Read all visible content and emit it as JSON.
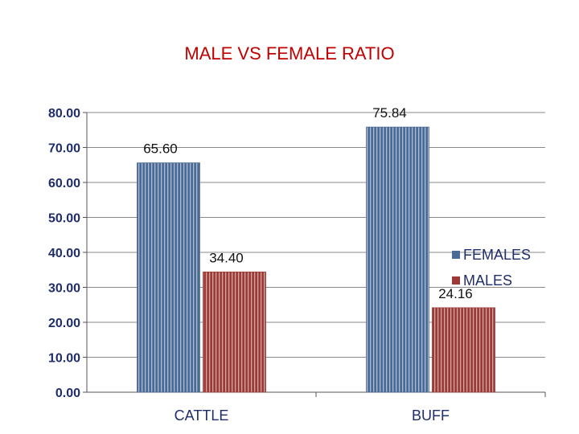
{
  "chart_data": {
    "type": "bar",
    "title": "MALE VS FEMALE RATIO",
    "categories": [
      "CATTLE",
      "BUFF"
    ],
    "series": [
      {
        "name": "FEMALES",
        "values": [
          65.6,
          75.84
        ],
        "labels": [
          "65.60",
          "75.84"
        ],
        "color": "#4a6a96"
      },
      {
        "name": "MALES",
        "values": [
          34.4,
          24.16
        ],
        "labels": [
          "34.40",
          "24.16"
        ],
        "color": "#9c3a38"
      }
    ],
    "ylim": [
      0,
      80
    ],
    "yticks": [
      "0.00",
      "10.00",
      "20.00",
      "30.00",
      "40.00",
      "50.00",
      "60.00",
      "70.00",
      "80.00"
    ],
    "ytick_values": [
      0,
      10,
      20,
      30,
      40,
      50,
      60,
      70,
      80
    ],
    "grid": true,
    "legend": "right",
    "xlabel": "",
    "ylabel": ""
  }
}
